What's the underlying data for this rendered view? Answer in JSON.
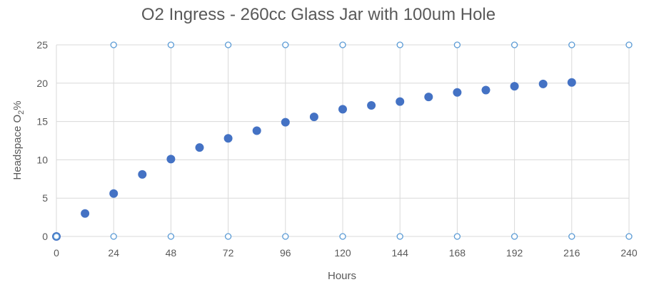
{
  "chart_data": {
    "type": "scatter",
    "title": "O2 Ingress - 260cc Glass Jar with 100um Hole",
    "xlabel": "Hours",
    "ylabel": {
      "pre": "Headspace O",
      "sub": "2",
      "post": "%"
    },
    "xlim": [
      0,
      240
    ],
    "ylim": [
      0,
      25
    ],
    "x_ticks": [
      0,
      24,
      48,
      72,
      96,
      120,
      144,
      168,
      192,
      216,
      240
    ],
    "y_ticks": [
      0,
      5,
      10,
      15,
      20,
      25
    ],
    "x_tick_labels": [
      "0",
      "24",
      "48",
      "72",
      "96",
      "120",
      "144",
      "168",
      "192",
      "216",
      "240"
    ],
    "y_tick_labels": [
      "0",
      "5",
      "10",
      "15",
      "20",
      "25"
    ],
    "grid": true,
    "legend": "none",
    "colors": {
      "marker": "#4472C4",
      "hollow_marker_stroke": "#5B9BD5",
      "grid": "#D9D9D9",
      "text": "#595959"
    },
    "series": [
      {
        "marker": "filled",
        "x": [
          0,
          12,
          24,
          36,
          48,
          60,
          72,
          84,
          96,
          108,
          120,
          132,
          144,
          156,
          168,
          180,
          192,
          204,
          216
        ],
        "y": [
          0,
          3.0,
          5.6,
          8.1,
          10.1,
          11.6,
          12.8,
          13.8,
          14.9,
          15.6,
          16.6,
          17.1,
          17.6,
          18.2,
          18.8,
          19.1,
          19.6,
          19.9,
          20.1
        ]
      },
      {
        "marker": "hollow",
        "x": [
          0,
          24,
          48,
          72,
          96,
          120,
          144,
          168,
          192,
          216,
          240
        ],
        "y": [
          0,
          0,
          0,
          0,
          0,
          0,
          0,
          0,
          0,
          0,
          0
        ]
      },
      {
        "marker": "hollow",
        "x": [
          24,
          48,
          72,
          96,
          120,
          144,
          168,
          192,
          216,
          240
        ],
        "y": [
          25,
          25,
          25,
          25,
          25,
          25,
          25,
          25,
          25,
          25
        ]
      }
    ]
  }
}
